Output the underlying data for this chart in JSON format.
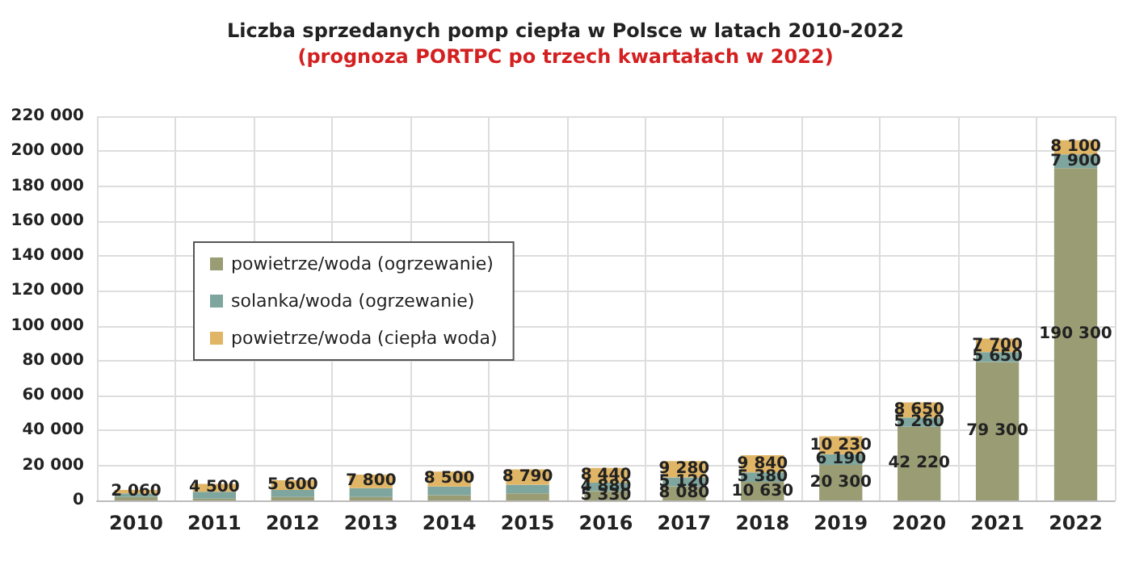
{
  "chart_data": {
    "type": "bar",
    "stacked": true,
    "title": "Liczba sprzedanych pomp ciepła w Polsce w latach 2010-2022",
    "subtitle": "(prognoza PORTPC po trzech kwartałach w 2022)",
    "categories": [
      "2010",
      "2011",
      "2012",
      "2013",
      "2014",
      "2015",
      "2016",
      "2017",
      "2018",
      "2019",
      "2020",
      "2021",
      "2022"
    ],
    "series": [
      {
        "name": "powietrze/woda (ogrzewanie)",
        "color": "#9a9c74",
        "values": [
          2000,
          1000,
          2000,
          2000,
          3000,
          4000,
          5330,
          8080,
          10630,
          20300,
          42220,
          79300,
          190300
        ],
        "value_labels": [
          null,
          null,
          null,
          null,
          null,
          null,
          "5 330",
          "8 080",
          "10 630",
          "20 300",
          "42 220",
          "79 300",
          "190 300"
        ]
      },
      {
        "name": "solanka/woda (ogrzewanie)",
        "color": "#7ea69e",
        "values": [
          2000,
          4000,
          4000,
          5000,
          5000,
          5000,
          4880,
          5120,
          5380,
          6190,
          5260,
          5650,
          7900
        ],
        "value_labels": [
          null,
          null,
          null,
          null,
          null,
          null,
          "4 880",
          "5 120",
          "5 380",
          "6 190",
          "5 260",
          "5 650",
          "7 900"
        ]
      },
      {
        "name": "powietrze/woda (ciepła woda)",
        "color": "#e0b566",
        "values": [
          2060,
          4500,
          5600,
          7800,
          8500,
          8790,
          8440,
          9280,
          9840,
          10230,
          8650,
          7700,
          8100
        ],
        "value_labels": [
          "2 060",
          "4 500",
          "5 600",
          "7 800",
          "8 500",
          "8 790",
          "8 440",
          "9 280",
          "9 840",
          "10 230",
          "8 650",
          "7 700",
          "8 100"
        ]
      }
    ],
    "ylim": [
      0,
      220000
    ],
    "yticks": [
      {
        "value": 0,
        "label": "0"
      },
      {
        "value": 20000,
        "label": "20 000"
      },
      {
        "value": 40000,
        "label": "40 000"
      },
      {
        "value": 60000,
        "label": "60 000"
      },
      {
        "value": 80000,
        "label": "80 000"
      },
      {
        "value": 100000,
        "label": "100 000"
      },
      {
        "value": 120000,
        "label": "120 000"
      },
      {
        "value": 140000,
        "label": "140 000"
      },
      {
        "value": 160000,
        "label": "160 000"
      },
      {
        "value": 180000,
        "label": "180 000"
      },
      {
        "value": 200000,
        "label": "200 000"
      },
      {
        "value": 220000,
        "label": "220 000"
      }
    ],
    "grid": true,
    "legend": "left"
  }
}
